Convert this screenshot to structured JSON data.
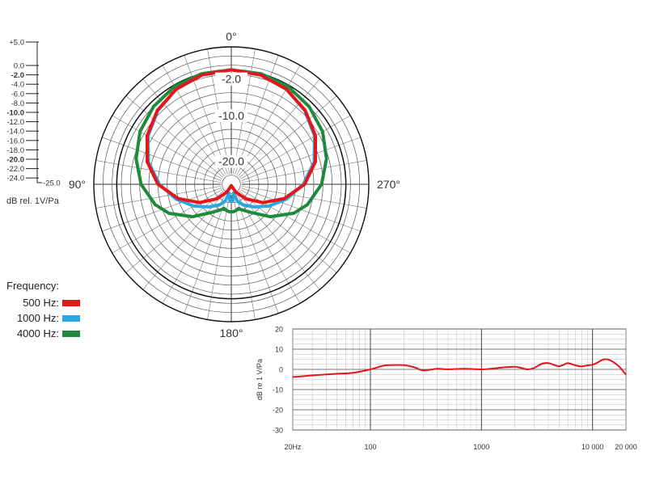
{
  "chart_data": [
    {
      "type": "polar",
      "angle_labels": [
        {
          "deg": 0,
          "text": "0°"
        },
        {
          "deg": 90,
          "text": "90°"
        },
        {
          "deg": 180,
          "text": "180°"
        },
        {
          "deg": 270,
          "text": "270°"
        }
      ],
      "radial_range": [
        -25,
        5
      ],
      "ring_labels": [
        "-2.0",
        "-10.0",
        "-20.0"
      ],
      "ring_label_values": [
        -2,
        -10,
        -20
      ],
      "scale_ticks": [
        {
          "v": 5,
          "text": "+5.0",
          "bold": false
        },
        {
          "v": 0,
          "text": "0.0",
          "bold": false
        },
        {
          "v": -2,
          "text": "-2.0",
          "bold": true
        },
        {
          "v": -4,
          "text": "-4.0",
          "bold": false
        },
        {
          "v": -6,
          "text": "-6.0",
          "bold": false
        },
        {
          "v": -8,
          "text": "-8.0",
          "bold": false
        },
        {
          "v": -10,
          "text": "-10.0",
          "bold": true
        },
        {
          "v": -12,
          "text": "-12.0",
          "bold": false
        },
        {
          "v": -14,
          "text": "-14.0",
          "bold": false
        },
        {
          "v": -16,
          "text": "-16.0",
          "bold": false
        },
        {
          "v": -18,
          "text": "-18.0",
          "bold": false
        },
        {
          "v": -20,
          "text": "-20.0",
          "bold": true
        },
        {
          "v": -22,
          "text": "-22.0",
          "bold": false
        },
        {
          "v": -24,
          "text": "-24.0",
          "bold": false
        },
        {
          "v": -25,
          "text": "-25.0",
          "bold": false
        }
      ],
      "scale_unit": "dB rel. 1V/Pa",
      "legend_title": "Frequency:",
      "series": [
        {
          "name": "500 Hz:",
          "color": "#e4161b",
          "angles": [
            0,
            15,
            30,
            45,
            60,
            75,
            90,
            105,
            120,
            135,
            150,
            165,
            175,
            180
          ],
          "values": [
            0,
            -0.3,
            -1,
            -2.2,
            -3.8,
            -6,
            -9,
            -13,
            -17,
            -20.5,
            -23,
            -24.5,
            -24.7,
            -24.5
          ]
        },
        {
          "name": "1000 Hz:",
          "color": "#2aa8e0",
          "angles": [
            0,
            15,
            30,
            45,
            60,
            75,
            90,
            105,
            120,
            135,
            150,
            160,
            165,
            170,
            175,
            180
          ],
          "values": [
            0,
            -0.3,
            -1,
            -2.3,
            -4,
            -6.3,
            -9.3,
            -12.5,
            -15.5,
            -18,
            -19.8,
            -21,
            -23,
            -22.3,
            -21.5,
            -21.3
          ]
        },
        {
          "name": "4000 Hz:",
          "color": "#1e8a3c",
          "angles": [
            0,
            15,
            30,
            45,
            60,
            75,
            90,
            105,
            115,
            130,
            145,
            158,
            163,
            170,
            175,
            180
          ],
          "values": [
            0,
            0,
            -0.3,
            -1,
            -2,
            -3.5,
            -5.3,
            -7.8,
            -10,
            -14,
            -17.5,
            -19,
            -19.5,
            -19.2,
            -19,
            -19
          ]
        }
      ]
    },
    {
      "type": "line",
      "xscale": "log",
      "xlim": [
        20,
        20000
      ],
      "ylim": [
        -30,
        20
      ],
      "x_ticks": [
        {
          "v": 20,
          "text": "20Hz"
        },
        {
          "v": 100,
          "text": "100"
        },
        {
          "v": 1000,
          "text": "1000"
        },
        {
          "v": 10000,
          "text": "10 000"
        },
        {
          "v": 20000,
          "text": "20 000"
        }
      ],
      "y_ticks": [
        20,
        10,
        0,
        -10,
        -20,
        -30
      ],
      "ylabel": "dB re 1 V/Pa",
      "grid": true,
      "series": [
        {
          "color": "#e4161b",
          "x": [
            20,
            30,
            50,
            70,
            100,
            130,
            150,
            200,
            250,
            300,
            400,
            500,
            700,
            1000,
            1300,
            1600,
            2000,
            2300,
            2600,
            3000,
            3500,
            4000,
            4500,
            5000,
            5500,
            6000,
            7000,
            8000,
            9000,
            10000,
            11000,
            12000,
            13000,
            14000,
            15000,
            16000,
            17000,
            18000,
            19000,
            20000
          ],
          "y": [
            -3.8,
            -3,
            -2.2,
            -1.7,
            0,
            1.8,
            2.1,
            2.1,
            1,
            -0.5,
            0.3,
            0,
            0.3,
            0,
            0.5,
            1,
            1.3,
            0.7,
            0,
            0.8,
            2.8,
            3.1,
            2.2,
            1.5,
            2.3,
            3.1,
            2,
            1.5,
            2,
            2.3,
            3.3,
            4.5,
            5,
            4.8,
            4,
            3,
            1.8,
            0.5,
            -1.1,
            -2.6
          ]
        }
      ]
    }
  ]
}
